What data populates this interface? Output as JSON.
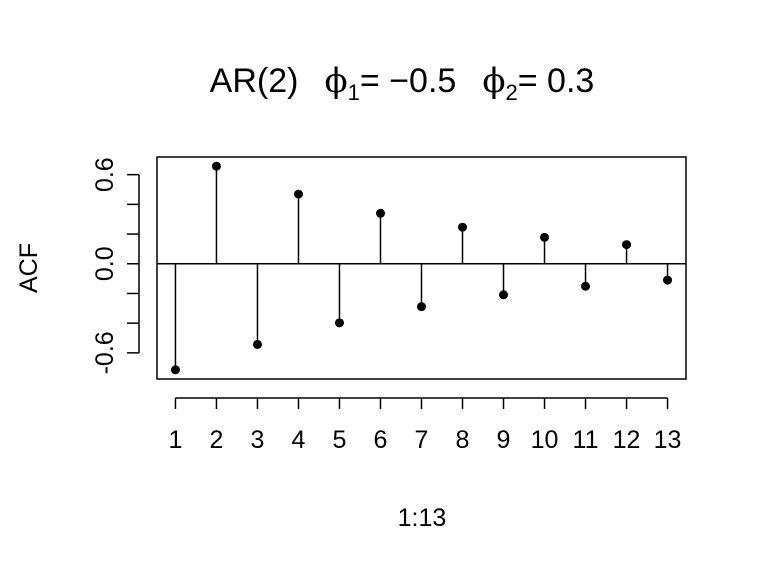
{
  "chart_data": {
    "type": "scatter",
    "style": "stem",
    "title": {
      "prefix": "AR(2)",
      "phi1_symbol": "ϕ",
      "phi1_subscript": "1",
      "phi1_rhs": "= −0.5",
      "phi2_symbol": "ϕ",
      "phi2_subscript": "2",
      "phi2_rhs": "= 0.3"
    },
    "xlabel": "1:13",
    "ylabel": "ACF",
    "x": [
      1,
      2,
      3,
      4,
      5,
      6,
      7,
      8,
      9,
      10,
      11,
      12,
      13
    ],
    "values": [
      -0.714,
      0.657,
      -0.543,
      0.469,
      -0.398,
      0.34,
      -0.289,
      0.246,
      -0.209,
      0.178,
      -0.151,
      0.129,
      -0.11
    ],
    "xlim": [
      0.55,
      13.45
    ],
    "ylim": [
      -0.776,
      0.719
    ],
    "x_ticks": [
      "1",
      "2",
      "3",
      "4",
      "5",
      "6",
      "7",
      "8",
      "9",
      "10",
      "11",
      "12",
      "13"
    ],
    "y_ticks": [
      -0.6,
      -0.4,
      -0.2,
      0.0,
      0.2,
      0.4,
      0.6
    ],
    "y_tick_labels": [
      "-0.6",
      "0.0",
      "0.6"
    ],
    "reference_line": 0,
    "grid": false,
    "legend": "none",
    "colors": {
      "marker": "#000000",
      "line": "#000000",
      "background": "#ffffff"
    }
  }
}
